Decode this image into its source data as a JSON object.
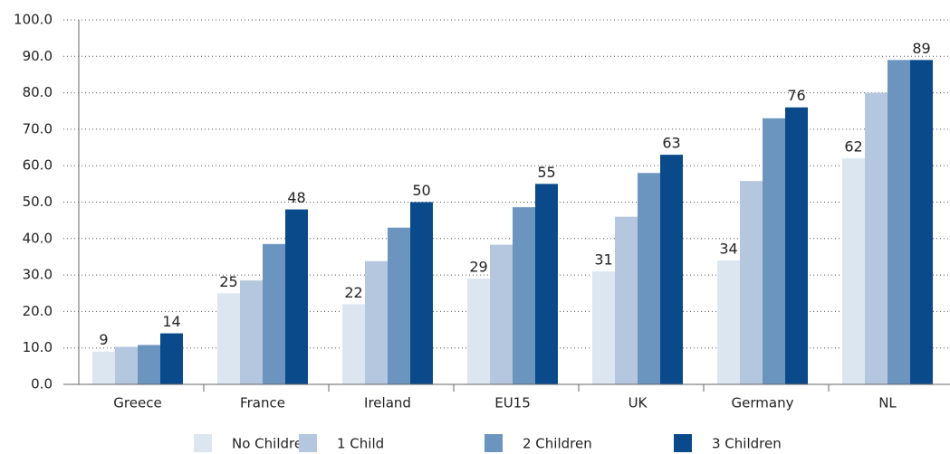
{
  "chart_data": {
    "type": "bar",
    "categories": [
      "Greece",
      "France",
      "Ireland",
      "EU15",
      "UK",
      "Germany",
      "NL"
    ],
    "series": [
      {
        "name": "No Children",
        "color": "#dce6f1",
        "show_labels": true,
        "values": [
          9,
          25,
          22,
          29,
          31,
          34,
          62
        ]
      },
      {
        "name": "1 Child",
        "color": "#b4c7de",
        "show_labels": false,
        "values": [
          10.3,
          28.5,
          33.8,
          38.3,
          46,
          55.8,
          80
        ]
      },
      {
        "name": "2 Children",
        "color": "#6b94bf",
        "show_labels": false,
        "values": [
          10.8,
          38.5,
          43,
          48.6,
          58,
          73,
          89
        ]
      },
      {
        "name": "3 Children",
        "color": "#0a4a8b",
        "show_labels": true,
        "values": [
          14,
          48,
          50,
          55,
          63,
          76,
          89
        ]
      }
    ],
    "ylim": [
      0,
      100
    ],
    "yticks": [
      {
        "value": 0,
        "label": "0.0"
      },
      {
        "value": 10,
        "label": "10.0"
      },
      {
        "value": 20,
        "label": "20.0"
      },
      {
        "value": 30,
        "label": "30.0"
      },
      {
        "value": 40,
        "label": "40.0"
      },
      {
        "value": 50,
        "label": "50.0"
      },
      {
        "value": 60,
        "label": "60.0"
      },
      {
        "value": 70,
        "label": "70.0"
      },
      {
        "value": 80,
        "label": "80.0"
      },
      {
        "value": 90,
        "label": "90.0"
      },
      {
        "value": 100,
        "label": "100.0"
      }
    ],
    "grid": true,
    "legend": "bottom"
  }
}
